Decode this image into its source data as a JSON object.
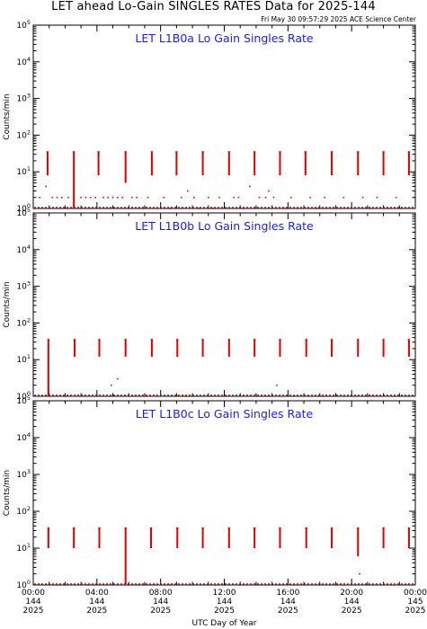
{
  "title": "LET ahead Lo-Gain SINGLES RATES Data for 2025-144",
  "timestamp": "Fri May 30 09:57:29 2025 ACE Science Center",
  "colors": {
    "data": "#e00000",
    "panel_title": "#1a1aff",
    "axes": "#000000"
  },
  "chart_data": [
    {
      "type": "scatter",
      "title": "LET L1B0a Lo Gain Singles Rate",
      "ylabel": "Counts/min",
      "yscale": "log",
      "ylim": [
        1,
        100000
      ],
      "xlim": [
        0,
        24
      ],
      "yticks": [
        "10^0",
        "10^1",
        "10^2",
        "10^3",
        "10^4",
        "10^5"
      ],
      "spikes": [
        {
          "x": 0.9,
          "low": 8,
          "high": 35
        },
        {
          "x": 2.55,
          "low": 1,
          "high": 35
        },
        {
          "x": 4.1,
          "low": 8,
          "high": 35
        },
        {
          "x": 5.8,
          "low": 5,
          "high": 35
        },
        {
          "x": 7.45,
          "low": 8,
          "high": 35
        },
        {
          "x": 9.0,
          "low": 8,
          "high": 35
        },
        {
          "x": 10.65,
          "low": 8,
          "high": 35
        },
        {
          "x": 12.3,
          "low": 8,
          "high": 35
        },
        {
          "x": 13.9,
          "low": 8,
          "high": 35
        },
        {
          "x": 15.5,
          "low": 8,
          "high": 35
        },
        {
          "x": 17.1,
          "low": 8,
          "high": 35
        },
        {
          "x": 18.75,
          "low": 8,
          "high": 35
        },
        {
          "x": 20.4,
          "low": 8,
          "high": 35
        },
        {
          "x": 22.0,
          "low": 8,
          "high": 35
        },
        {
          "x": 23.6,
          "low": 8,
          "high": 35
        }
      ],
      "background": [
        {
          "x": 0.1,
          "y": 1
        },
        {
          "x": 0.4,
          "y": 2
        },
        {
          "x": 0.8,
          "y": 4
        },
        {
          "x": 1.2,
          "y": 2
        },
        {
          "x": 1.5,
          "y": 2
        },
        {
          "x": 1.8,
          "y": 2
        },
        {
          "x": 2.2,
          "y": 2
        },
        {
          "x": 3.0,
          "y": 2
        },
        {
          "x": 3.3,
          "y": 2
        },
        {
          "x": 3.6,
          "y": 2
        },
        {
          "x": 3.9,
          "y": 2
        },
        {
          "x": 4.4,
          "y": 2
        },
        {
          "x": 4.7,
          "y": 2
        },
        {
          "x": 5.0,
          "y": 2
        },
        {
          "x": 5.3,
          "y": 2
        },
        {
          "x": 5.6,
          "y": 2
        },
        {
          "x": 6.2,
          "y": 2
        },
        {
          "x": 6.5,
          "y": 2
        },
        {
          "x": 6.9,
          "y": 1
        },
        {
          "x": 7.2,
          "y": 2
        },
        {
          "x": 7.8,
          "y": 1
        },
        {
          "x": 8.2,
          "y": 2
        },
        {
          "x": 8.6,
          "y": 1
        },
        {
          "x": 9.3,
          "y": 2
        },
        {
          "x": 9.7,
          "y": 3
        },
        {
          "x": 10.1,
          "y": 2
        },
        {
          "x": 10.4,
          "y": 1
        },
        {
          "x": 11.0,
          "y": 2
        },
        {
          "x": 11.3,
          "y": 1
        },
        {
          "x": 11.7,
          "y": 2
        },
        {
          "x": 12.6,
          "y": 2
        },
        {
          "x": 12.9,
          "y": 2
        },
        {
          "x": 13.2,
          "y": 1
        },
        {
          "x": 13.6,
          "y": 4
        },
        {
          "x": 14.2,
          "y": 2
        },
        {
          "x": 14.6,
          "y": 2
        },
        {
          "x": 14.8,
          "y": 3
        },
        {
          "x": 15.1,
          "y": 2
        },
        {
          "x": 15.8,
          "y": 1
        },
        {
          "x": 16.2,
          "y": 2
        },
        {
          "x": 16.6,
          "y": 1
        },
        {
          "x": 17.4,
          "y": 2
        },
        {
          "x": 17.8,
          "y": 1
        },
        {
          "x": 18.3,
          "y": 2
        },
        {
          "x": 19.0,
          "y": 1
        },
        {
          "x": 19.5,
          "y": 2
        },
        {
          "x": 20.0,
          "y": 1
        },
        {
          "x": 20.7,
          "y": 2
        },
        {
          "x": 21.2,
          "y": 1
        },
        {
          "x": 21.6,
          "y": 2
        },
        {
          "x": 22.3,
          "y": 1
        },
        {
          "x": 22.8,
          "y": 2
        },
        {
          "x": 23.1,
          "y": 1
        },
        {
          "x": 23.9,
          "y": 2
        }
      ]
    },
    {
      "type": "scatter",
      "title": "LET L1B0b Lo Gain Singles Rate",
      "ylabel": "Counts/min",
      "yscale": "log",
      "ylim": [
        1,
        100000
      ],
      "xlim": [
        0,
        24
      ],
      "yticks": [
        "10^0",
        "10^1",
        "10^2",
        "10^3",
        "10^4",
        "10^5"
      ],
      "spikes": [
        {
          "x": 0.95,
          "low": 1,
          "high": 35
        },
        {
          "x": 2.6,
          "low": 12,
          "high": 35
        },
        {
          "x": 4.15,
          "low": 12,
          "high": 35
        },
        {
          "x": 5.8,
          "low": 12,
          "high": 35
        },
        {
          "x": 7.45,
          "low": 12,
          "high": 35
        },
        {
          "x": 9.05,
          "low": 12,
          "high": 35
        },
        {
          "x": 10.65,
          "low": 12,
          "high": 35
        },
        {
          "x": 12.3,
          "low": 12,
          "high": 35
        },
        {
          "x": 13.9,
          "low": 12,
          "high": 35
        },
        {
          "x": 15.5,
          "low": 12,
          "high": 35
        },
        {
          "x": 17.15,
          "low": 12,
          "high": 35
        },
        {
          "x": 18.75,
          "low": 12,
          "high": 35
        },
        {
          "x": 20.4,
          "low": 12,
          "high": 35
        },
        {
          "x": 22.0,
          "low": 12,
          "high": 35
        },
        {
          "x": 23.6,
          "low": 12,
          "high": 35
        }
      ],
      "background": [
        {
          "x": 2.0,
          "y": 1
        },
        {
          "x": 4.9,
          "y": 2
        },
        {
          "x": 5.3,
          "y": 3
        },
        {
          "x": 7.0,
          "y": 1
        },
        {
          "x": 9.6,
          "y": 1
        },
        {
          "x": 12.0,
          "y": 1
        },
        {
          "x": 15.3,
          "y": 2
        },
        {
          "x": 18.2,
          "y": 1
        },
        {
          "x": 21.0,
          "y": 1
        }
      ]
    },
    {
      "type": "scatter",
      "title": "LET L1B0c Lo Gain Singles Rate",
      "ylabel": "Counts/min",
      "yscale": "log",
      "ylim": [
        1,
        100000
      ],
      "xlim": [
        0,
        24
      ],
      "yticks": [
        "10^0",
        "10^1",
        "10^2",
        "10^3",
        "10^4",
        "10^5"
      ],
      "spikes": [
        {
          "x": 0.95,
          "low": 10,
          "high": 35
        },
        {
          "x": 2.55,
          "low": 10,
          "high": 35
        },
        {
          "x": 4.15,
          "low": 10,
          "high": 35
        },
        {
          "x": 5.8,
          "low": 1,
          "high": 35
        },
        {
          "x": 7.4,
          "low": 10,
          "high": 35
        },
        {
          "x": 9.05,
          "low": 10,
          "high": 35
        },
        {
          "x": 10.65,
          "low": 10,
          "high": 35
        },
        {
          "x": 12.3,
          "low": 10,
          "high": 35
        },
        {
          "x": 13.9,
          "low": 10,
          "high": 35
        },
        {
          "x": 15.5,
          "low": 10,
          "high": 35
        },
        {
          "x": 17.15,
          "low": 10,
          "high": 35
        },
        {
          "x": 18.75,
          "low": 10,
          "high": 35
        },
        {
          "x": 20.4,
          "low": 6,
          "high": 35
        },
        {
          "x": 22.0,
          "low": 10,
          "high": 35
        },
        {
          "x": 23.6,
          "low": 10,
          "high": 35
        }
      ],
      "background": [
        {
          "x": 1.5,
          "y": 1
        },
        {
          "x": 3.4,
          "y": 1
        },
        {
          "x": 6.6,
          "y": 1
        },
        {
          "x": 8.6,
          "y": 1
        },
        {
          "x": 11.4,
          "y": 1
        },
        {
          "x": 14.6,
          "y": 1
        },
        {
          "x": 16.4,
          "y": 1
        },
        {
          "x": 19.5,
          "y": 1
        },
        {
          "x": 20.5,
          "y": 2
        },
        {
          "x": 22.7,
          "y": 1
        }
      ]
    }
  ],
  "x_axis": {
    "label": "UTC Day of Year",
    "ticks": [
      {
        "x": 0,
        "time": "00:00",
        "doy": "144",
        "year": "2025"
      },
      {
        "x": 4,
        "time": "04:00",
        "doy": "144",
        "year": "2025"
      },
      {
        "x": 8,
        "time": "08:00",
        "doy": "144",
        "year": "2025"
      },
      {
        "x": 12,
        "time": "12:00",
        "doy": "144",
        "year": "2025"
      },
      {
        "x": 16,
        "time": "16:00",
        "doy": "144",
        "year": "2025"
      },
      {
        "x": 20,
        "time": "20:00",
        "doy": "144",
        "year": "2025"
      },
      {
        "x": 24,
        "time": "00:00",
        "doy": "145",
        "year": "2025"
      }
    ]
  }
}
